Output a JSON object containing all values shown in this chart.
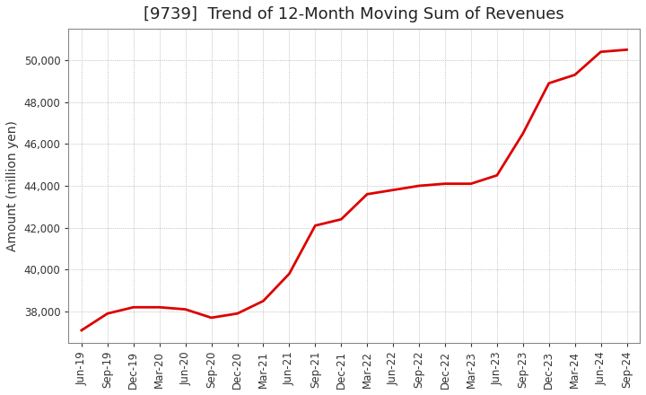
{
  "title": "[9739]  Trend of 12-Month Moving Sum of Revenues",
  "ylabel": "Amount (million yen)",
  "line_color": "#dd0000",
  "background_color": "#ffffff",
  "plot_bg_color": "#ffffff",
  "ylim": [
    36500,
    51500
  ],
  "yticks": [
    38000,
    40000,
    42000,
    44000,
    46000,
    48000,
    50000
  ],
  "x_labels": [
    "Jun-19",
    "Sep-19",
    "Dec-19",
    "Mar-20",
    "Jun-20",
    "Sep-20",
    "Dec-20",
    "Mar-21",
    "Jun-21",
    "Sep-21",
    "Dec-21",
    "Mar-22",
    "Jun-22",
    "Sep-22",
    "Dec-22",
    "Mar-23",
    "Jun-23",
    "Sep-23",
    "Dec-23",
    "Mar-24",
    "Jun-24",
    "Sep-24"
  ],
  "values": [
    37100,
    37900,
    38200,
    38200,
    38100,
    37700,
    37900,
    38500,
    39800,
    42100,
    42400,
    43600,
    43800,
    44000,
    44100,
    44100,
    44500,
    46500,
    48900,
    49300,
    50400,
    50500
  ],
  "title_fontsize": 13,
  "tick_fontsize": 8.5,
  "label_fontsize": 10,
  "line_width": 2.0
}
